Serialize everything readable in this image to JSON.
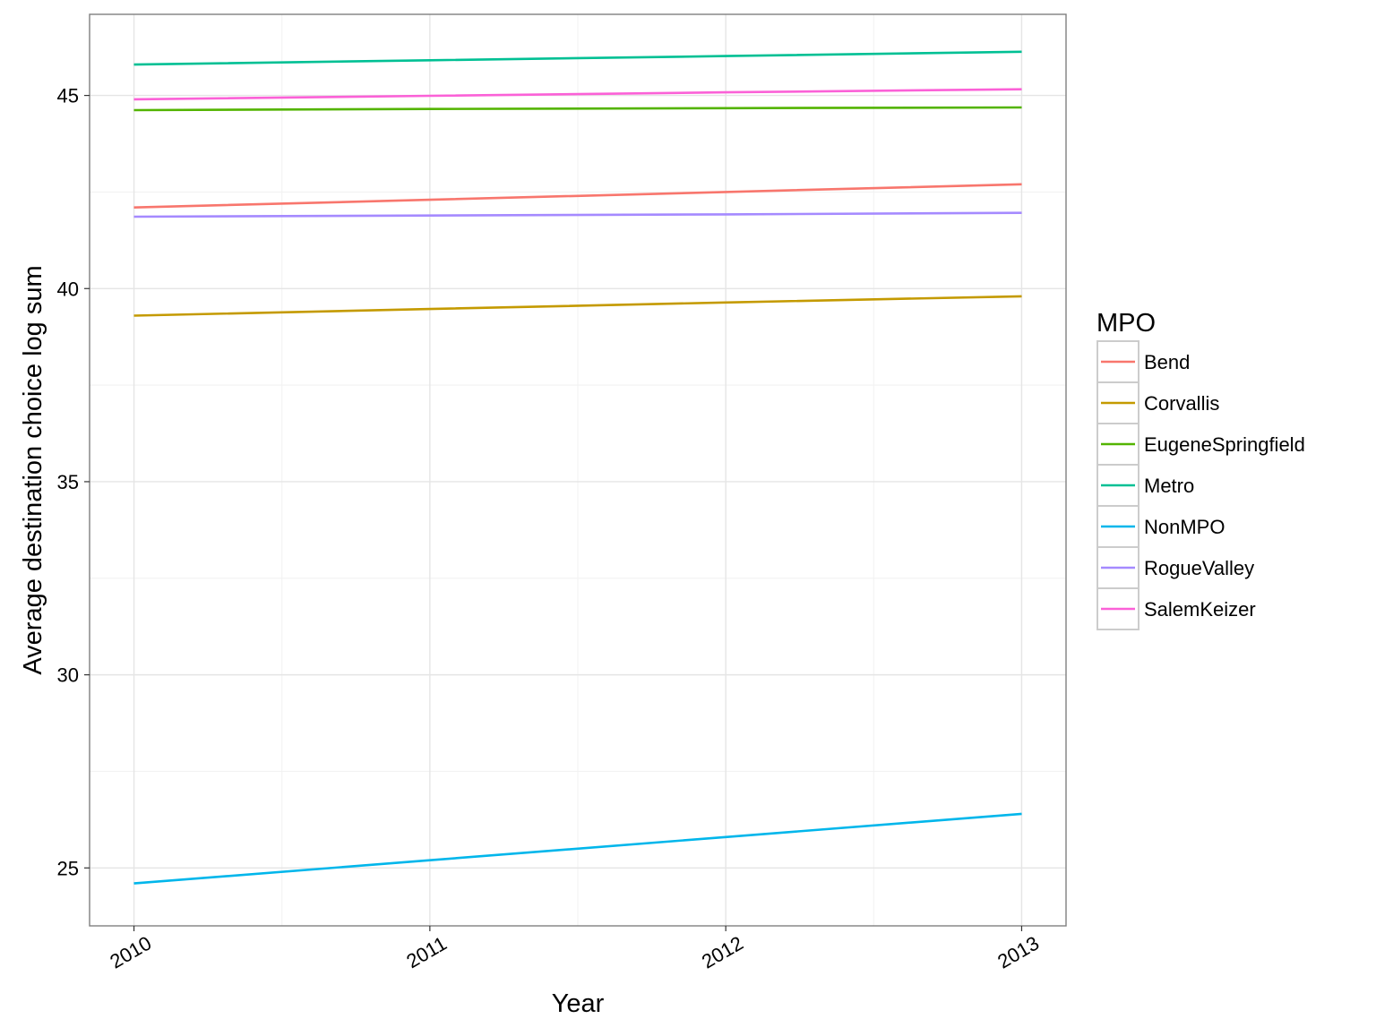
{
  "chart_data": {
    "type": "line",
    "title": "",
    "xlabel": "Year",
    "ylabel": "Average destination choice log sum",
    "x": [
      2010,
      2011,
      2012,
      2013
    ],
    "x_ticks": [
      "2010",
      "2011",
      "2012",
      "2013"
    ],
    "y_ticks": [
      "25",
      "30",
      "35",
      "40",
      "45"
    ],
    "xlim": [
      2009.85,
      2013.15
    ],
    "ylim": [
      23.5,
      47.1
    ],
    "grid": true,
    "legend": {
      "title": "MPO",
      "placement": "right"
    },
    "series": [
      {
        "name": "Bend",
        "color": "#F8766D",
        "values": [
          42.1,
          42.3,
          42.5,
          42.7
        ]
      },
      {
        "name": "Corvallis",
        "color": "#C49A00",
        "values": [
          39.3,
          39.47,
          39.64,
          39.8
        ]
      },
      {
        "name": "EugeneSpringfield",
        "color": "#53B400",
        "values": [
          44.62,
          44.65,
          44.67,
          44.69
        ]
      },
      {
        "name": "Metro",
        "color": "#00C094",
        "values": [
          45.8,
          45.91,
          46.02,
          46.13
        ]
      },
      {
        "name": "NonMPO",
        "color": "#00B6EB",
        "values": [
          24.6,
          25.2,
          25.8,
          26.4
        ]
      },
      {
        "name": "RogueValley",
        "color": "#A58AFF",
        "values": [
          41.86,
          41.89,
          41.92,
          41.96
        ]
      },
      {
        "name": "SalemKeizer",
        "color": "#FB61D7",
        "values": [
          44.9,
          44.99,
          45.08,
          45.16
        ]
      }
    ]
  }
}
